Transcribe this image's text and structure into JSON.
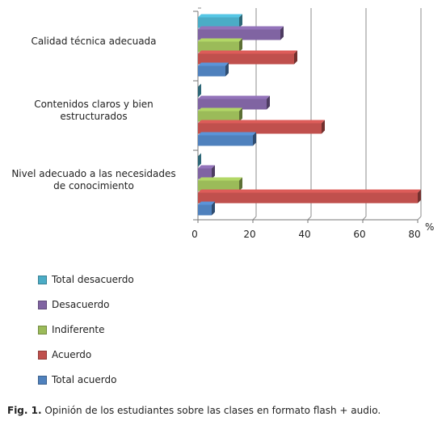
{
  "chart_data": {
    "type": "bar",
    "orientation": "horizontal",
    "categories": [
      "Calidad técnica adecuada",
      "Contenidos claros y bien estructurados",
      "Nivel adecuado a las necesidades de conocimiento"
    ],
    "category_lines": [
      [
        "Calidad técnica adecuada"
      ],
      [
        "Contenidos claros y bien",
        "estructurados"
      ],
      [
        "Nivel adecuado a las necesidades",
        "de conocimiento"
      ]
    ],
    "series": [
      {
        "name": "Total desacuerdo",
        "color": "#4bacc6",
        "values": [
          15,
          0,
          0
        ]
      },
      {
        "name": "Desacuerdo",
        "color": "#8064a2",
        "values": [
          30,
          25,
          5
        ]
      },
      {
        "name": "Indiferente",
        "color": "#9bbb59",
        "values": [
          15,
          15,
          15
        ]
      },
      {
        "name": "Acuerdo",
        "color": "#c0504d",
        "values": [
          35,
          45,
          80
        ]
      },
      {
        "name": "Total acuerdo",
        "color": "#4f81bd",
        "values": [
          10,
          20,
          5
        ]
      }
    ],
    "x_ticks": [
      "0",
      "20",
      "40",
      "60",
      "80"
    ],
    "xlim": [
      0,
      80
    ],
    "unit_label": "%",
    "grid": true,
    "legend_position": "bottom"
  },
  "caption": {
    "prefix": "Fig. 1.",
    "text": " Opinión de los estudiantes sobre  las clases en formato flash + audio."
  }
}
